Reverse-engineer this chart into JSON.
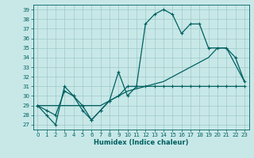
{
  "xlabel": "Humidex (Indice chaleur)",
  "bg_color": "#c8e8e8",
  "grid_color": "#a0c8c8",
  "line_color": "#006060",
  "xlim": [
    -0.5,
    23.5
  ],
  "ylim": [
    26.5,
    39.5
  ],
  "xticks": [
    0,
    1,
    2,
    3,
    4,
    5,
    6,
    7,
    8,
    9,
    10,
    11,
    12,
    13,
    14,
    15,
    16,
    17,
    18,
    19,
    20,
    21,
    22,
    23
  ],
  "yticks": [
    27,
    28,
    29,
    30,
    31,
    32,
    33,
    34,
    35,
    36,
    37,
    38,
    39
  ],
  "series1_x": [
    0,
    1,
    2,
    3,
    4,
    5,
    6,
    7,
    8,
    9,
    10,
    11,
    12,
    13,
    14,
    15,
    16,
    17,
    18,
    19,
    20,
    21,
    22,
    23
  ],
  "series1_y": [
    29,
    28,
    27,
    31,
    30,
    28.5,
    27.5,
    28.5,
    29.5,
    32.5,
    30,
    31,
    37.5,
    38.5,
    39,
    38.5,
    36.5,
    37.5,
    37.5,
    35,
    35,
    35,
    34,
    31.5
  ],
  "series2_x": [
    0,
    1,
    2,
    3,
    4,
    5,
    6,
    7,
    8,
    9,
    10,
    11,
    12,
    13,
    14,
    15,
    16,
    17,
    18,
    19,
    20,
    21,
    22,
    23
  ],
  "series2_y": [
    29,
    28.5,
    28,
    30.5,
    30,
    29,
    27.5,
    28.5,
    29.5,
    30,
    31,
    31,
    31,
    31,
    31,
    31,
    31,
    31,
    31,
    31,
    31,
    31,
    31,
    31
  ],
  "series3_x": [
    0,
    3,
    5,
    7,
    9,
    10,
    14,
    19,
    20,
    21,
    23
  ],
  "series3_y": [
    29,
    29,
    29,
    29,
    30,
    30.5,
    31.5,
    34,
    35,
    35,
    31.5
  ]
}
